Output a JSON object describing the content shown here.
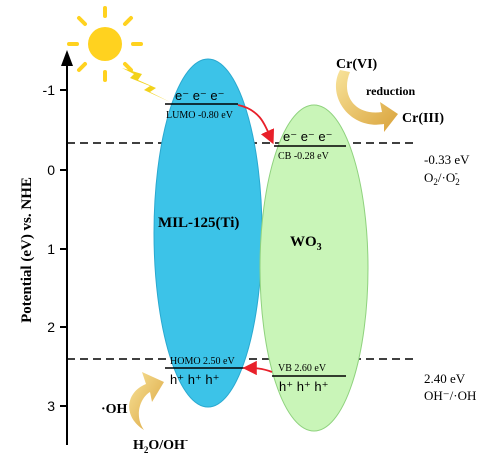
{
  "axis": {
    "label": "Potential (eV) vs. NHE",
    "ticks": [
      "-1",
      "0",
      "1",
      "2",
      "3"
    ]
  },
  "mil": {
    "name": "MIL-125(Ti)",
    "lumo_label": "LUMO -0.80 eV",
    "homo_label": "HOMO 2.50 eV",
    "electrons": "e⁻ e⁻ e⁻",
    "holes": "h⁺ h⁺ h⁺",
    "color": "#3cc3e8"
  },
  "wo3": {
    "name_main": "WO",
    "name_sub": "3",
    "cb_label": "CB -0.28 eV",
    "vb_label": "VB 2.60 eV",
    "electrons": "e⁻ e⁻ e⁻",
    "holes": "h⁺ h⁺ h⁺",
    "color": "#c9f5b8"
  },
  "redox": {
    "o2_potential": "-0.33 eV",
    "o2_couple_left": "O",
    "o2_couple_sub": "2",
    "o2_couple_right": "/·O",
    "o2_couple_sub2": "2",
    "o2_couple_sup": "-",
    "oh_potential": "2.40 eV",
    "oh_couple": "OH⁻/·OH"
  },
  "reactions": {
    "crvi": "Cr(VI)",
    "reduction": "reduction",
    "criii": "Cr(III)",
    "oh_radical": "·OH",
    "water_main": "H",
    "water_sub": "2",
    "water_rest": "O/OH",
    "water_sup": "-"
  },
  "colors": {
    "sun": "#ffd21f",
    "lightning": "#f2d21b",
    "arrow_red": "#e8202a",
    "curved_arrow": "#f0c35a"
  }
}
